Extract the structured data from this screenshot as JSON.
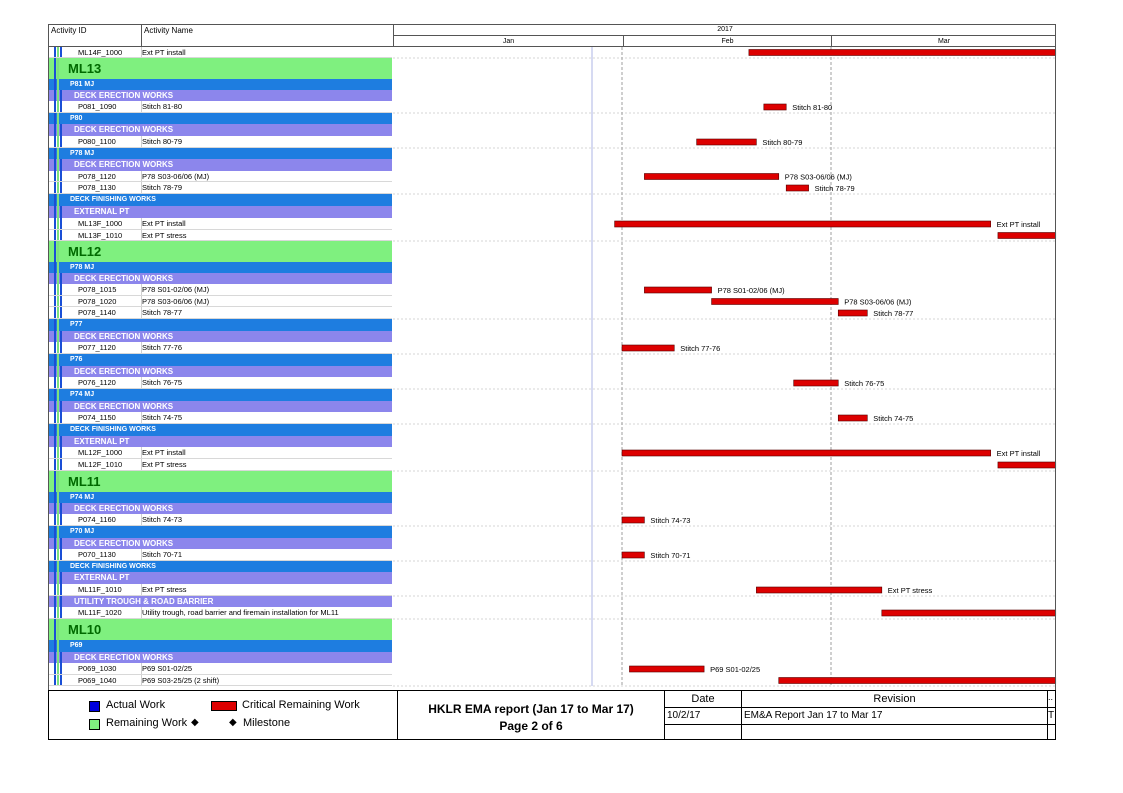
{
  "header": {
    "activity_id": "Activity ID",
    "activity_name": "Activity Name",
    "year": "2017",
    "months": [
      "Jan",
      "Feb",
      "Mar"
    ]
  },
  "rows": [
    {
      "kind": "act",
      "id": "ML14F_1000",
      "name": "Ext PT install"
    },
    {
      "kind": "proj",
      "label": "ML13"
    },
    {
      "kind": "p",
      "label": "P81 MJ"
    },
    {
      "kind": "w",
      "label": "DECK ERECTION WORKS"
    },
    {
      "kind": "act",
      "id": "P081_1090",
      "name": "Stitch 81-80"
    },
    {
      "kind": "p",
      "label": "P80"
    },
    {
      "kind": "w",
      "label": "DECK ERECTION WORKS"
    },
    {
      "kind": "act",
      "id": "P080_1100",
      "name": "Stitch 80-79"
    },
    {
      "kind": "p",
      "label": "P78 MJ"
    },
    {
      "kind": "w",
      "label": "DECK ERECTION WORKS"
    },
    {
      "kind": "act",
      "id": "P078_1120",
      "name": "P78 S03-06/06 (MJ)"
    },
    {
      "kind": "act",
      "id": "P078_1130",
      "name": "Stitch 78-79"
    },
    {
      "kind": "p",
      "label": "DECK FINISHING WORKS"
    },
    {
      "kind": "w",
      "label": "EXTERNAL PT"
    },
    {
      "kind": "act",
      "id": "ML13F_1000",
      "name": "Ext PT install"
    },
    {
      "kind": "act",
      "id": "ML13F_1010",
      "name": "Ext PT stress"
    },
    {
      "kind": "proj",
      "label": "ML12"
    },
    {
      "kind": "p",
      "label": "P78 MJ"
    },
    {
      "kind": "w",
      "label": "DECK ERECTION WORKS"
    },
    {
      "kind": "act",
      "id": "P078_1015",
      "name": "P78 S01-02/06 (MJ)"
    },
    {
      "kind": "act",
      "id": "P078_1020",
      "name": "P78 S03-06/06 (MJ)"
    },
    {
      "kind": "act",
      "id": "P078_1140",
      "name": "Stitch 78-77"
    },
    {
      "kind": "p",
      "label": "P77"
    },
    {
      "kind": "w",
      "label": "DECK ERECTION WORKS"
    },
    {
      "kind": "act",
      "id": "P077_1120",
      "name": "Stitch 77-76"
    },
    {
      "kind": "p",
      "label": "P76"
    },
    {
      "kind": "w",
      "label": "DECK ERECTION WORKS"
    },
    {
      "kind": "act",
      "id": "P076_1120",
      "name": "Stitch 76-75"
    },
    {
      "kind": "p",
      "label": "P74 MJ"
    },
    {
      "kind": "w",
      "label": "DECK ERECTION WORKS"
    },
    {
      "kind": "act",
      "id": "P074_1150",
      "name": "Stitch 74-75"
    },
    {
      "kind": "p",
      "label": "DECK FINISHING WORKS"
    },
    {
      "kind": "w",
      "label": "EXTERNAL PT"
    },
    {
      "kind": "act",
      "id": "ML12F_1000",
      "name": "Ext PT install"
    },
    {
      "kind": "act",
      "id": "ML12F_1010",
      "name": "Ext PT stress"
    },
    {
      "kind": "proj",
      "label": "ML11"
    },
    {
      "kind": "p",
      "label": "P74 MJ"
    },
    {
      "kind": "w",
      "label": "DECK ERECTION WORKS"
    },
    {
      "kind": "act",
      "id": "P074_1160",
      "name": "Stitch 74-73"
    },
    {
      "kind": "p",
      "label": "P70 MJ"
    },
    {
      "kind": "w",
      "label": "DECK ERECTION WORKS"
    },
    {
      "kind": "act",
      "id": "P070_1130",
      "name": "Stitch 70-71"
    },
    {
      "kind": "p",
      "label": "DECK FINISHING WORKS"
    },
    {
      "kind": "w",
      "label": "EXTERNAL PT"
    },
    {
      "kind": "act",
      "id": "ML11F_1010",
      "name": "Ext PT stress"
    },
    {
      "kind": "w",
      "label": "UTILITY TROUGH & ROAD BARRIER"
    },
    {
      "kind": "act",
      "id": "ML11F_1020",
      "name": "Utility trough, road barrier and firemain installation for ML11"
    },
    {
      "kind": "proj",
      "label": "ML10"
    },
    {
      "kind": "p",
      "label": "P69"
    },
    {
      "kind": "w",
      "label": "DECK ERECTION WORKS"
    },
    {
      "kind": "act",
      "id": "P069_1030",
      "name": "P69 S01-02/25"
    },
    {
      "kind": "act",
      "id": "P069_1040",
      "name": "P69 S03-25/25 (2 shift)"
    }
  ],
  "chart_data": {
    "type": "gantt",
    "x_axis": {
      "year": "2017",
      "months": [
        "Jan",
        "Feb",
        "Mar"
      ],
      "range": [
        "2017-01-01",
        "2017-03-31"
      ]
    },
    "grid": true,
    "bars": [
      {
        "row": 0,
        "start": "2017-02-18",
        "end": "2017-03-31",
        "label": ""
      },
      {
        "row": 4,
        "start": "2017-02-20",
        "end": "2017-02-23",
        "label": "Stitch 81-80"
      },
      {
        "row": 7,
        "start": "2017-02-11",
        "end": "2017-02-19",
        "label": "Stitch 80-79"
      },
      {
        "row": 10,
        "start": "2017-02-04",
        "end": "2017-02-22",
        "label": "P78 S03-06/06 (MJ)"
      },
      {
        "row": 11,
        "start": "2017-02-23",
        "end": "2017-02-26",
        "label": "Stitch 78-79"
      },
      {
        "row": 14,
        "start": "2017-01-31",
        "end": "2017-03-23",
        "label": "Ext PT install"
      },
      {
        "row": 15,
        "start": "2017-03-24",
        "end": "2017-03-31",
        "label": ""
      },
      {
        "row": 19,
        "start": "2017-02-04",
        "end": "2017-02-13",
        "label": "P78 S01-02/06 (MJ)"
      },
      {
        "row": 20,
        "start": "2017-02-13",
        "end": "2017-03-02",
        "label": "P78 S03-06/06 (MJ)"
      },
      {
        "row": 21,
        "start": "2017-03-02",
        "end": "2017-03-06",
        "label": "Stitch 78-77"
      },
      {
        "row": 24,
        "start": "2017-02-01",
        "end": "2017-02-08",
        "label": "Stitch 77-76"
      },
      {
        "row": 27,
        "start": "2017-02-24",
        "end": "2017-03-02",
        "label": "Stitch 76-75"
      },
      {
        "row": 30,
        "start": "2017-03-02",
        "end": "2017-03-06",
        "label": "Stitch 74-75"
      },
      {
        "row": 33,
        "start": "2017-02-01",
        "end": "2017-03-23",
        "label": "Ext PT install"
      },
      {
        "row": 34,
        "start": "2017-03-24",
        "end": "2017-03-31",
        "label": ""
      },
      {
        "row": 38,
        "start": "2017-02-01",
        "end": "2017-02-04",
        "label": "Stitch 74-73"
      },
      {
        "row": 41,
        "start": "2017-02-01",
        "end": "2017-02-04",
        "label": "Stitch 70-71"
      },
      {
        "row": 44,
        "start": "2017-02-19",
        "end": "2017-03-08",
        "label": "Ext PT stress"
      },
      {
        "row": 46,
        "start": "2017-03-08",
        "end": "2017-03-31",
        "label": ""
      },
      {
        "row": 50,
        "start": "2017-02-02",
        "end": "2017-02-12",
        "label": "P69 S01-02/25"
      },
      {
        "row": 51,
        "start": "2017-02-22",
        "end": "2017-03-31",
        "label": ""
      }
    ],
    "colors": {
      "critical": "#dd0000",
      "actual": "#0000dd",
      "remaining": "#7ff07f",
      "wbs_project": "#7ff07f",
      "wbs_pier": "#1e7de0",
      "wbs_works": "#8c86ec"
    }
  },
  "legend": {
    "actual": "Actual Work",
    "critical": "Critical Remaining Work",
    "remaining": "Remaining Work",
    "milestone": "Milestone",
    "title": "HKLR EMA report (Jan 17 to Mar 17)",
    "page": "Page 2 of 6",
    "date_h": "Date",
    "rev_h": "Revision",
    "date_v": "10/2/17",
    "rev_v": "EM&A Report Jan 17 to Mar 17",
    "trunc1": "..",
    "trunc2": "T"
  }
}
